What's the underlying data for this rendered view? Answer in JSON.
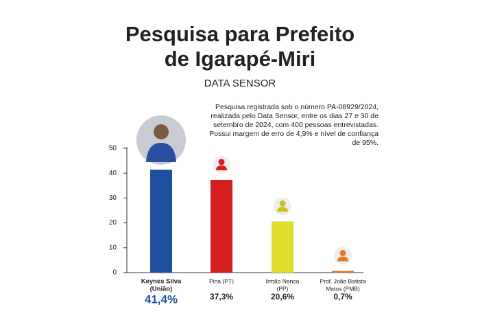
{
  "chart_data": {
    "type": "bar",
    "title": [
      "Pesquisa para Prefeito",
      "de Igarapé-Miri"
    ],
    "subtitle": "DATA SENSOR",
    "note": "Pesquisa registrada sob o número PA-08929/2024, realizada pelo Data Sensor, entre os dias 27 e 30 de setembro de 2024, com 400 pessoas entrevistadas. Possui margem de erro de 4,9% e nível de confiança de 95%.",
    "categories": [
      [
        "Keynes Silva",
        "(União)"
      ],
      [
        "Pina (PT)"
      ],
      [
        "Irmão Nenca",
        "(PP)"
      ],
      [
        "Prof. João Batista",
        "Matos (PMB)"
      ]
    ],
    "values": [
      41.4,
      37.3,
      20.6,
      0.7
    ],
    "value_labels": [
      "41,4%",
      "37,3%",
      "20,6%",
      "0,7%"
    ],
    "colors": [
      "#1f4f9f",
      "#d41f1f",
      "#e0dd30",
      "#e07a2a"
    ],
    "ylim": [
      0,
      50
    ],
    "yticks": [
      0,
      10,
      20,
      30,
      40,
      50
    ]
  }
}
